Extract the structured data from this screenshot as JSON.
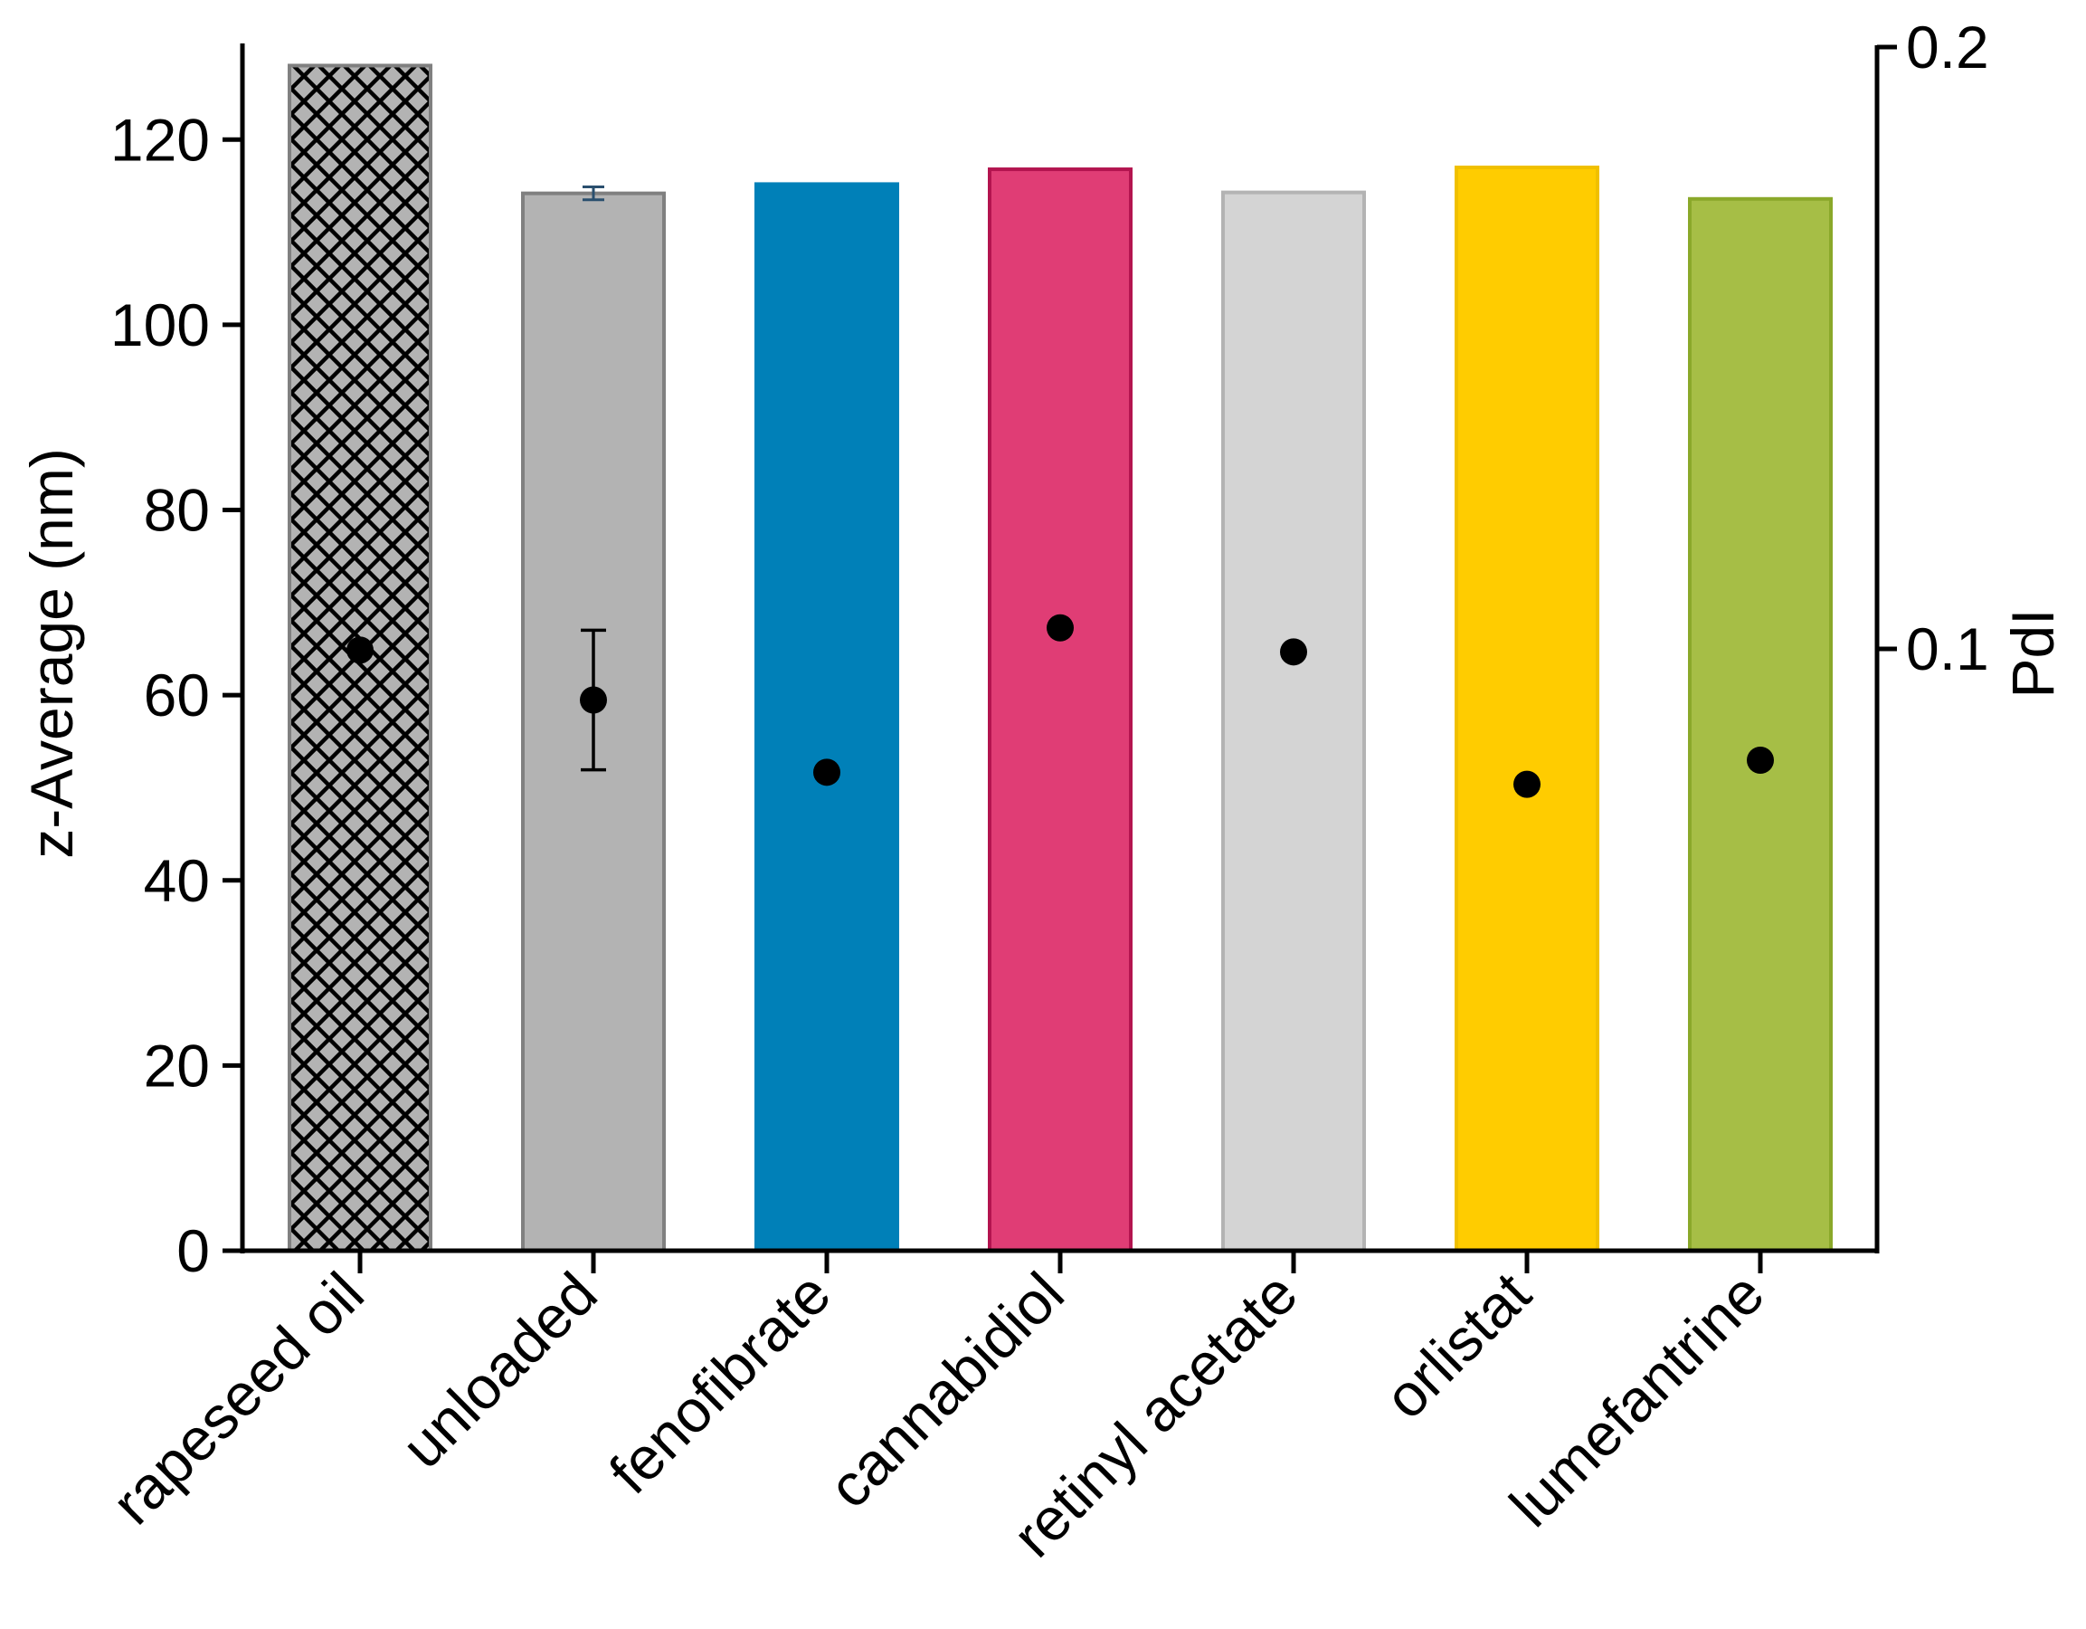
{
  "chart_data": {
    "type": "bar",
    "categories": [
      "rapeseed oil",
      "unloaded",
      "fenofibrate",
      "cannabidiol",
      "retinyl acetate",
      "orlistat",
      "lumefantrine"
    ],
    "series": [
      {
        "axis": "left",
        "mark": "bar",
        "values": [
          128,
          114.2,
          115.2,
          116.8,
          114.3,
          117.0,
          113.6
        ],
        "error": [
          null,
          0.7,
          null,
          null,
          null,
          null,
          null
        ],
        "colors": [
          "#b3b3b3",
          "#b3b3b3",
          "#0080b8",
          "#e03d75",
          "#d4d4d4",
          "#ffcc00",
          "#a6be46"
        ],
        "edge_colors": [
          "#808080",
          "#808080",
          "#0080b8",
          "#b3144f",
          "#b3b3b3",
          "#f0c000",
          "#8aa82a"
        ],
        "patterns": [
          "crosshatch",
          "none",
          "none",
          "none",
          "none",
          "none",
          "none"
        ]
      },
      {
        "axis": "right",
        "mark": "point",
        "values": [
          0.0998,
          0.0915,
          0.0795,
          0.1035,
          0.0995,
          0.0775,
          0.0815
        ],
        "error": [
          null,
          0.0116,
          null,
          null,
          null,
          null,
          null
        ],
        "color": "#000000"
      }
    ],
    "ylabel": "z-Average (nm)",
    "ylim": [
      0,
      130
    ],
    "yticks": [
      "0",
      "20",
      "40",
      "60",
      "80",
      "100",
      "120"
    ],
    "y2label": "PdI",
    "y2lim": [
      0,
      0.2
    ],
    "y2ticks": [
      "0.1",
      "0.2"
    ],
    "y2tick_values": [
      0.1,
      0.2
    ],
    "grid": false,
    "errorbar_color_left": "#2a4f6e",
    "errorbar_color_right": "#000000"
  }
}
